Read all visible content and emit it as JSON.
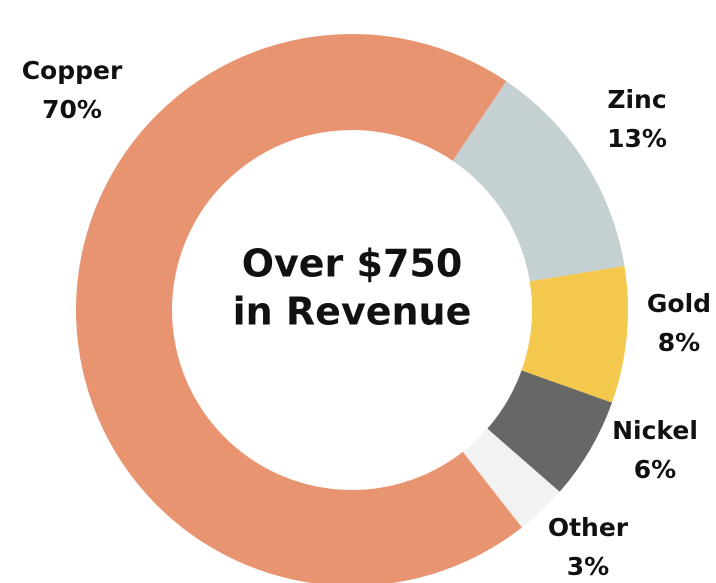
{
  "chart_data": {
    "type": "donut",
    "center_text": [
      "Over $750",
      "in Revenue"
    ],
    "categories": [
      "Copper",
      "Zinc",
      "Gold",
      "Nickel",
      "Other"
    ],
    "values": [
      70,
      13,
      8,
      6,
      3
    ],
    "value_labels": [
      "70%",
      "13%",
      "8%",
      "6%",
      "3%"
    ],
    "colors": [
      "#e89470",
      "#c5d0d3",
      "#f4c84c",
      "#666866",
      "#f2f2f2"
    ]
  }
}
